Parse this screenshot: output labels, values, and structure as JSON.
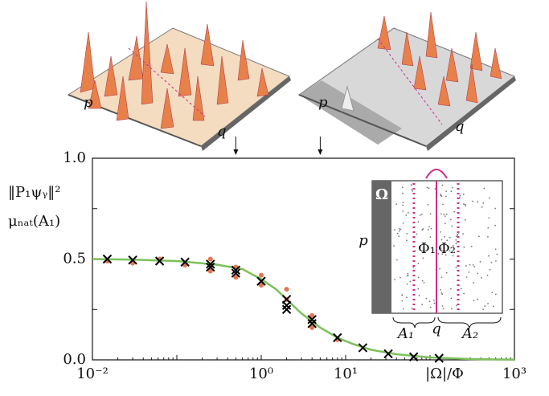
{
  "chart_data": {
    "type": "scatter",
    "xlabel": "|Ω|/Φ",
    "ylabel_lines": [
      "‖P₁ψᵧ‖²",
      "μₙₐₜ(A₁)"
    ],
    "xscale": "log",
    "xlim": [
      0.01,
      1000
    ],
    "ylim": [
      0,
      1
    ],
    "xticks": [
      {
        "value": 0.01,
        "label": "10⁻²"
      },
      {
        "value": 1,
        "label": "10⁰"
      },
      {
        "value": 10,
        "label": "10¹"
      },
      {
        "value": 1000,
        "label": "10³"
      }
    ],
    "yticks": [
      {
        "value": 0,
        "label": "0.0"
      },
      0.25,
      {
        "value": 0.5,
        "label": "0.5"
      },
      0.75,
      {
        "value": 1,
        "label": "1.0"
      }
    ],
    "arrows_x": [
      0.5,
      5
    ],
    "series": [
      {
        "style": "line",
        "color": "#7cc05a",
        "x": [
          0.01,
          0.03,
          0.1,
          0.3,
          0.6,
          1,
          1.5,
          2,
          3,
          5,
          8,
          12,
          20,
          40,
          100,
          300,
          1000
        ],
        "values": [
          0.5,
          0.497,
          0.49,
          0.472,
          0.45,
          0.4,
          0.35,
          0.3,
          0.23,
          0.16,
          0.11,
          0.08,
          0.05,
          0.028,
          0.012,
          0.004,
          0.001
        ]
      },
      {
        "style": "dot",
        "color": "#e8744f",
        "x": [
          0.015,
          0.03,
          0.0625,
          0.125,
          0.25,
          0.25,
          0.5,
          0.5,
          1,
          1,
          2,
          2,
          4,
          4,
          8
        ],
        "values": [
          0.49,
          0.48,
          0.5,
          0.47,
          0.5,
          0.44,
          0.46,
          0.41,
          0.42,
          0.37,
          0.35,
          0.3,
          0.22,
          0.16,
          0.1
        ]
      },
      {
        "style": "cross",
        "color": "#000000",
        "x": [
          0.015,
          0.03,
          0.0625,
          0.125,
          0.25,
          0.25,
          0.5,
          0.5,
          1,
          2,
          2,
          2,
          4,
          4,
          8,
          16,
          32,
          64,
          128
        ],
        "values": [
          0.5,
          0.495,
          0.49,
          0.485,
          0.475,
          0.46,
          0.445,
          0.43,
          0.39,
          0.3,
          0.27,
          0.25,
          0.2,
          0.18,
          0.11,
          0.06,
          0.03,
          0.015,
          0.008
        ]
      }
    ]
  },
  "top_panels": {
    "left": {
      "x_label": "p",
      "y_label": "q"
    },
    "right": {
      "x_label": "p",
      "y_label": "q"
    }
  },
  "inset": {
    "omega": "Ω",
    "phi1": "Φ₁",
    "phi2": "Φ₂",
    "p": "p",
    "q": "q",
    "a1": "A₁",
    "a2": "A₂"
  }
}
